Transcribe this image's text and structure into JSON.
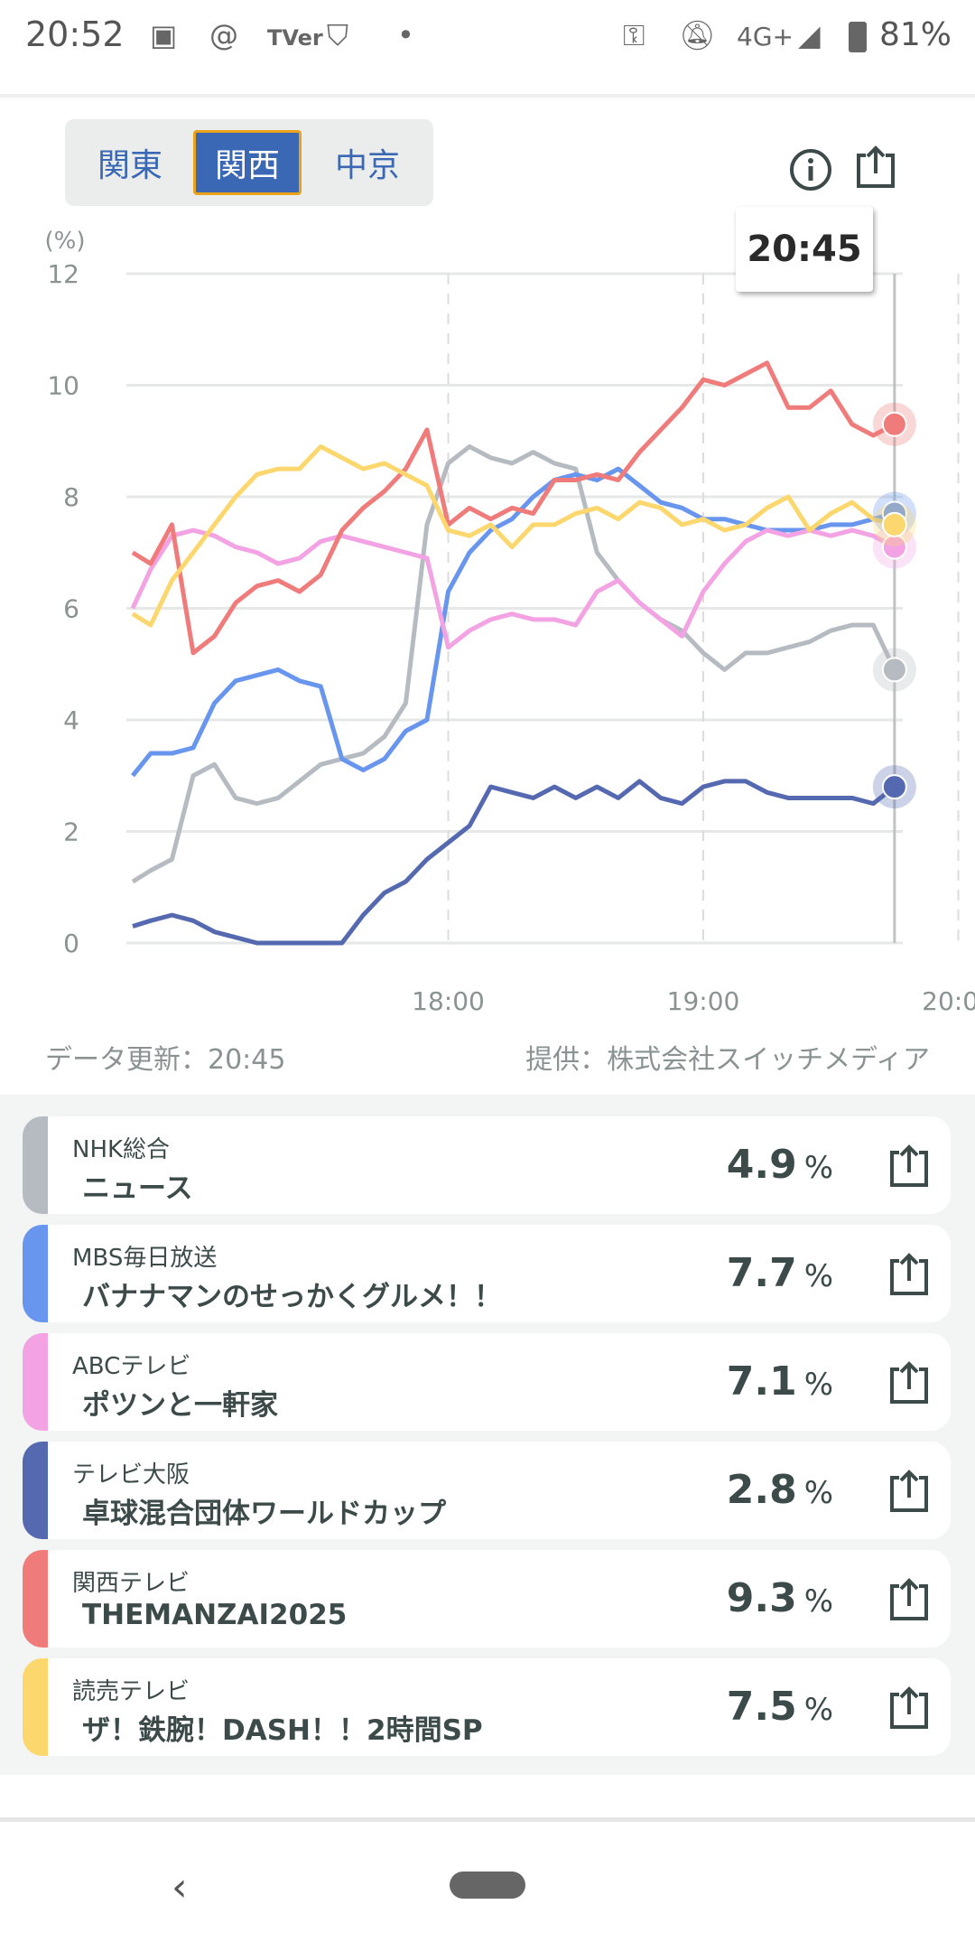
{
  "status": {
    "time": "20:52",
    "network": "4G+",
    "battery": "81%"
  },
  "tabs": [
    {
      "label": "関東",
      "active": false
    },
    {
      "label": "関西",
      "active": true
    },
    {
      "label": "中京",
      "active": false
    }
  ],
  "tooltip": {
    "time": "20:45"
  },
  "footer": {
    "updated": "データ更新：20:45",
    "provider": "提供：株式会社スイッチメディア"
  },
  "chart_data": {
    "type": "line",
    "ylabel": "(%)",
    "ylim": [
      0,
      12
    ],
    "yticks": [
      0,
      2,
      4,
      6,
      8,
      10,
      12
    ],
    "xticks": [
      "18:00",
      "19:00",
      "20:00"
    ],
    "x_start": "17:45",
    "x_step_minutes": 5,
    "cursor": "20:45",
    "series": [
      {
        "name": "NHK総合",
        "color": "#b6bbc1",
        "values": [
          1.1,
          1.3,
          1.5,
          3.0,
          3.2,
          2.6,
          2.5,
          2.6,
          2.9,
          3.2,
          3.3,
          3.4,
          3.7,
          4.3,
          7.5,
          8.6,
          8.9,
          8.7,
          8.6,
          8.8,
          8.6,
          8.5,
          7.0,
          6.5,
          6.1,
          5.8,
          5.6,
          5.2,
          4.9,
          5.2,
          5.2,
          5.3,
          5.4,
          5.6,
          5.7,
          5.7,
          4.9
        ]
      },
      {
        "name": "MBS毎日放送",
        "color": "#6895ee",
        "values": [
          3.0,
          3.4,
          3.4,
          3.5,
          4.3,
          4.7,
          4.8,
          4.9,
          4.7,
          4.6,
          3.3,
          3.1,
          3.3,
          3.8,
          4.0,
          6.3,
          7.0,
          7.4,
          7.6,
          8.0,
          8.3,
          8.4,
          8.3,
          8.5,
          8.2,
          7.9,
          7.8,
          7.6,
          7.6,
          7.5,
          7.4,
          7.4,
          7.4,
          7.5,
          7.5,
          7.6,
          7.7
        ]
      },
      {
        "name": "ABCテレビ",
        "color": "#f3a3e3",
        "values": [
          6.0,
          6.7,
          7.3,
          7.4,
          7.3,
          7.1,
          7.0,
          6.8,
          6.9,
          7.2,
          7.3,
          7.2,
          7.1,
          7.0,
          6.9,
          5.3,
          5.6,
          5.8,
          5.9,
          5.8,
          5.8,
          5.7,
          6.3,
          6.5,
          6.1,
          5.8,
          5.5,
          6.3,
          6.8,
          7.2,
          7.4,
          7.3,
          7.4,
          7.3,
          7.4,
          7.3,
          7.1
        ]
      },
      {
        "name": "テレビ大阪",
        "color": "#5569b0",
        "values": [
          0.3,
          0.4,
          0.5,
          0.4,
          0.2,
          0.1,
          0.0,
          0.0,
          0.0,
          0.0,
          0.0,
          0.5,
          0.9,
          1.1,
          1.5,
          1.8,
          2.1,
          2.8,
          2.7,
          2.6,
          2.8,
          2.6,
          2.8,
          2.6,
          2.9,
          2.6,
          2.5,
          2.8,
          2.9,
          2.9,
          2.7,
          2.6,
          2.6,
          2.6,
          2.6,
          2.5,
          2.8
        ]
      },
      {
        "name": "関西テレビ",
        "color": "#f07b7b",
        "values": [
          7.0,
          6.8,
          7.5,
          5.2,
          5.5,
          6.1,
          6.4,
          6.5,
          6.3,
          6.6,
          7.4,
          7.8,
          8.1,
          8.5,
          9.2,
          7.5,
          7.8,
          7.6,
          7.8,
          7.7,
          8.3,
          8.3,
          8.4,
          8.3,
          8.8,
          9.2,
          9.6,
          10.1,
          10.0,
          10.2,
          10.4,
          9.6,
          9.6,
          9.9,
          9.3,
          9.1,
          9.3
        ]
      },
      {
        "name": "読売テレビ",
        "color": "#fcd76e",
        "values": [
          5.9,
          5.7,
          6.5,
          7.0,
          7.5,
          8.0,
          8.4,
          8.5,
          8.5,
          8.9,
          8.7,
          8.5,
          8.6,
          8.4,
          8.2,
          7.4,
          7.3,
          7.5,
          7.1,
          7.5,
          7.5,
          7.7,
          7.8,
          7.6,
          7.9,
          7.8,
          7.5,
          7.6,
          7.4,
          7.5,
          7.8,
          8.0,
          7.4,
          7.7,
          7.9,
          7.6,
          7.5
        ]
      }
    ]
  },
  "channels": [
    {
      "station": "NHK総合",
      "program": "ニュース",
      "rating": "4.9",
      "unit": "%",
      "color": "#b6bbc1"
    },
    {
      "station": "MBS毎日放送",
      "program": "バナナマンのせっかくグルメ！！",
      "rating": "7.7",
      "unit": "%",
      "color": "#6895ee"
    },
    {
      "station": "ABCテレビ",
      "program": "ポツンと一軒家",
      "rating": "7.1",
      "unit": "%",
      "color": "#f3a3e3"
    },
    {
      "station": "テレビ大阪",
      "program": "卓球混合団体ワールドカップ",
      "rating": "2.8",
      "unit": "%",
      "color": "#5569b0"
    },
    {
      "station": "関西テレビ",
      "program": "THEMANZAI2025",
      "rating": "9.3",
      "unit": "%",
      "color": "#f07b7b"
    },
    {
      "station": "読売テレビ",
      "program": "ザ！鉄腕！DASH！！2時間SP",
      "rating": "7.5",
      "unit": "%",
      "color": "#fcd76e"
    }
  ]
}
